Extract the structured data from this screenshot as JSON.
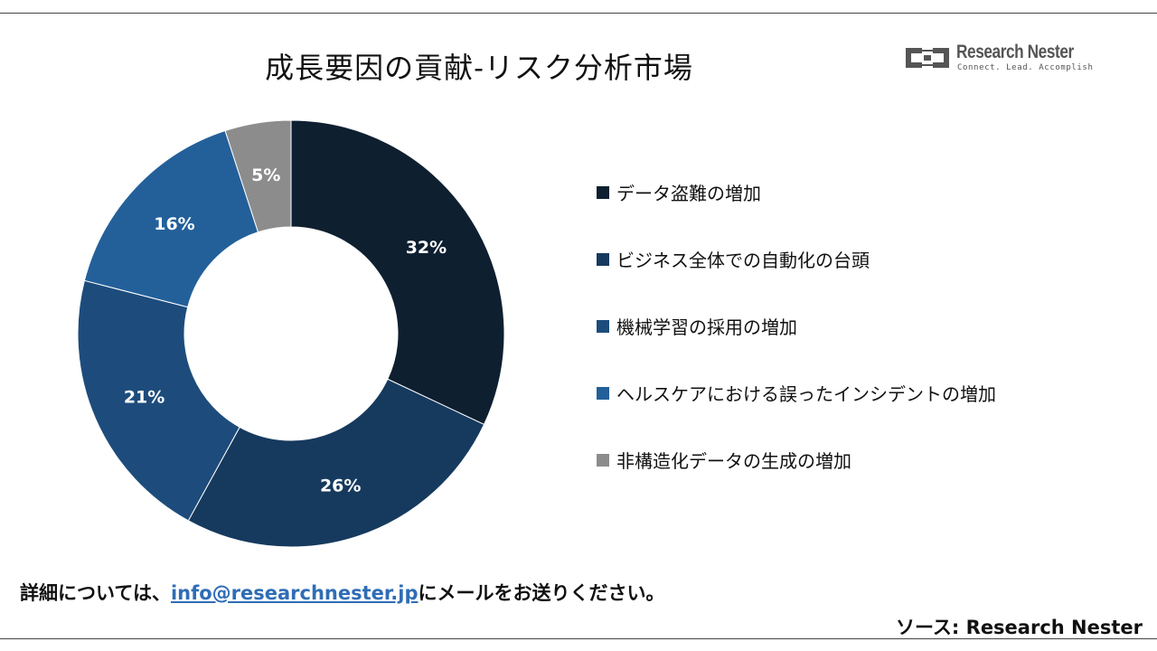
{
  "header": {
    "title": "成長要因の貢献-リスク分析市場"
  },
  "brand": {
    "name": "Research Nester",
    "tagline": "Connect. Lead. Accomplish",
    "color": "#555555"
  },
  "chart_data": {
    "type": "pie",
    "variant": "donut",
    "categories": [
      "データ盗難の増加",
      "ビジネス全体での自動化の台頭",
      "機械学習の採用の増加",
      "ヘルスケアにおける誤ったインシデントの増加",
      "非構造化データの生成の増加"
    ],
    "values": [
      32,
      26,
      21,
      16,
      5
    ],
    "labels": [
      "32%",
      "26%",
      "21%",
      "16%",
      "5%"
    ],
    "colors": [
      "#0e1f30",
      "#163a5e",
      "#1d4c7c",
      "#23609a",
      "#8c8c8c"
    ],
    "legend_placement": "right"
  },
  "footer": {
    "note_prefix": "詳細については、",
    "email": "info@researchnester.jp",
    "note_suffix": "にメールをお送りください。",
    "source": "ソース: Research Nester"
  }
}
